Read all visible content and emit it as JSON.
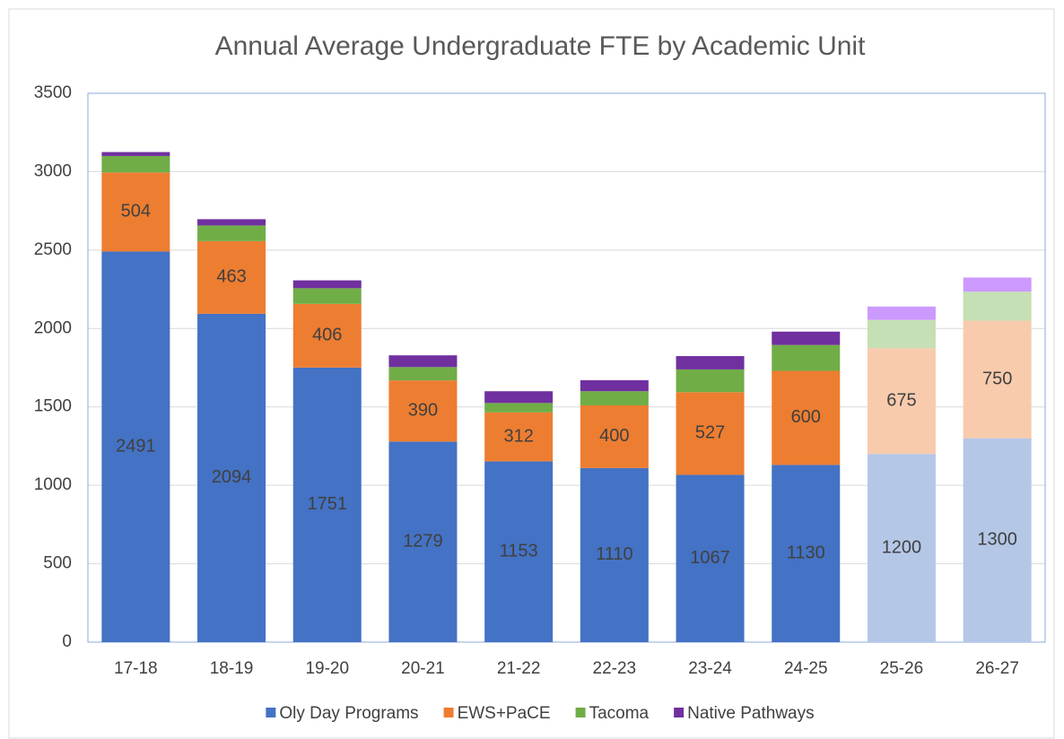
{
  "chart_data": {
    "type": "stacked_bar",
    "title": "Annual Average  Undergraduate FTE by Academic Unit",
    "categories": [
      "17-18",
      "18-19",
      "19-20",
      "20-21",
      "21-22",
      "22-23",
      "23-24",
      "24-25",
      "25-26",
      "26-27"
    ],
    "series": [
      {
        "name": "Oly Day Programs",
        "color": "#4472c4",
        "data_labels": true,
        "colors": [
          "#4472c4",
          "#4472c4",
          "#4472c4",
          "#4472c4",
          "#4472c4",
          "#4472c4",
          "#4472c4",
          "#4472c4",
          "#b4c7e7",
          "#b4c7e7"
        ],
        "values": [
          2491,
          2094,
          1751,
          1279,
          1153,
          1110,
          1067,
          1130,
          1200,
          1300
        ]
      },
      {
        "name": "EWS+PaCE",
        "color": "#ed7d31",
        "data_labels": true,
        "colors": [
          "#ed7d31",
          "#ed7d31",
          "#ed7d31",
          "#ed7d31",
          "#ed7d31",
          "#ed7d31",
          "#ed7d31",
          "#ed7d31",
          "#f8cbad",
          "#f8cbad"
        ],
        "values": [
          504,
          463,
          406,
          390,
          312,
          400,
          527,
          600,
          675,
          750
        ]
      },
      {
        "name": "Tacoma",
        "color": "#70ad47",
        "data_labels": false,
        "colors": [
          "#70ad47",
          "#70ad47",
          "#70ad47",
          "#70ad47",
          "#70ad47",
          "#70ad47",
          "#70ad47",
          "#70ad47",
          "#c5e0b4",
          "#c5e0b4"
        ],
        "values": [
          105,
          100,
          100,
          85,
          60,
          90,
          145,
          165,
          180,
          185
        ]
      },
      {
        "name": "Native Pathways",
        "color": "#7030a0",
        "data_labels": false,
        "colors": [
          "#7030a0",
          "#7030a0",
          "#7030a0",
          "#7030a0",
          "#7030a0",
          "#7030a0",
          "#7030a0",
          "#7030a0",
          "#cc99ff",
          "#cc99ff"
        ],
        "values": [
          25,
          40,
          50,
          75,
          75,
          70,
          85,
          85,
          85,
          90
        ]
      }
    ],
    "ylim": [
      0,
      3500
    ],
    "yticks": [
      0,
      500,
      1000,
      1500,
      2000,
      2500,
      3000,
      3500
    ],
    "grid": true,
    "legend": "bottom"
  }
}
